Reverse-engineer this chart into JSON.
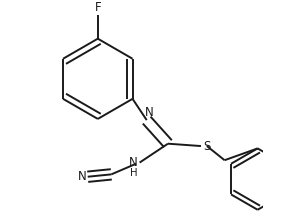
{
  "bg_color": "#ffffff",
  "line_color": "#1a1a1a",
  "line_width": 1.4,
  "font_size": 8.5,
  "figsize": [
    2.9,
    2.14
  ],
  "dpi": 100,
  "atoms": {
    "F_label": "F",
    "N1_label": "N",
    "NH_label": "NH",
    "S_label": "S",
    "N2_label": "N"
  }
}
